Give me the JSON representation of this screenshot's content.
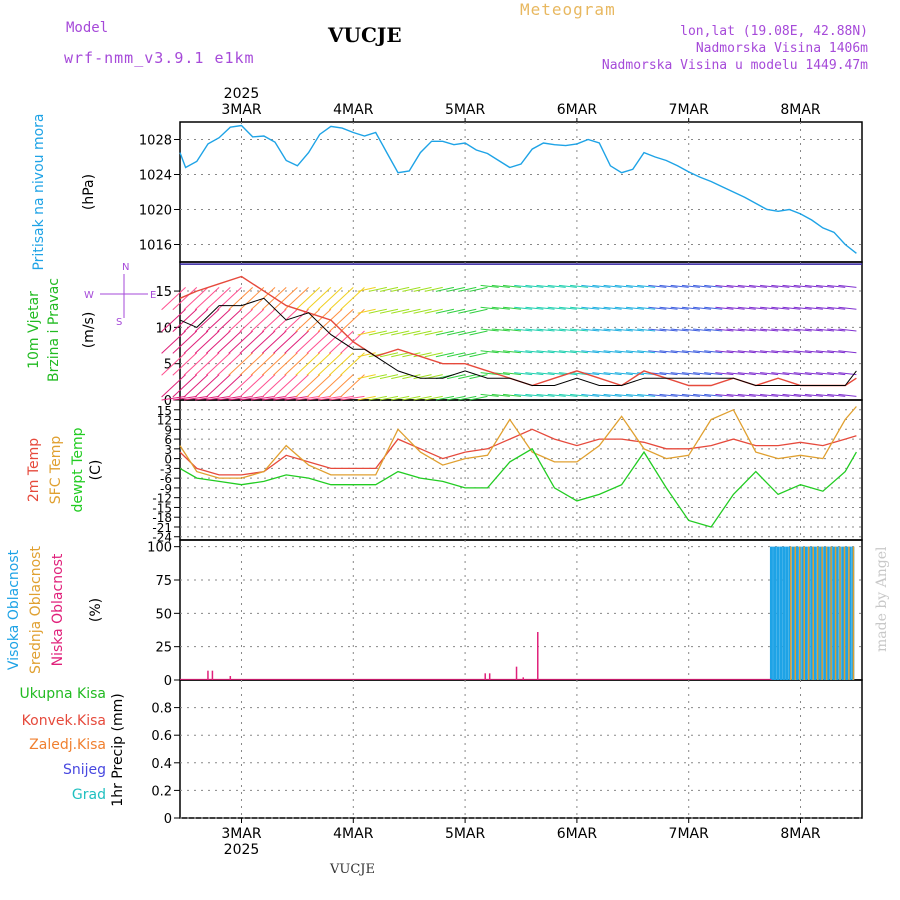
{
  "header": {
    "station": "VUCJE",
    "model_label": "Model",
    "model_name": "wrf-nmm_v3.9.1 e1km",
    "meteogram_label": "Meteogram",
    "coords": "lon,lat (19.08E, 42.88N)",
    "elevation": "Nadmorska Visina 1406m",
    "model_elevation": "Nadmorska Visina u modelu 1449.47m"
  },
  "footer": {
    "station": "VUCJE",
    "credit": "made by Angel"
  },
  "colors": {
    "pressure": "#1ea3e6",
    "temp2m": "#e64a3c",
    "sfc": "#e0a030",
    "dewpt": "#22cc22",
    "high_cloud": "#1ea3e6",
    "mid_cloud": "#e0a030",
    "low_cloud": "#e0207a",
    "gust": "#e64a3c",
    "wind_black": "#000000"
  },
  "chart_data": [
    {
      "type": "line",
      "title": "Pritisak na nivou mora",
      "ylabel": "(hPa)",
      "ylim": [
        1014,
        1030
      ],
      "yticks": [
        1016,
        1020,
        1024,
        1028
      ],
      "grid": true,
      "x_top_labels": [
        "3MAR",
        "4MAR",
        "5MAR",
        "6MAR",
        "7MAR",
        "8MAR"
      ],
      "x_top_year": "2025",
      "series": [
        {
          "x": [
            2.45,
            2.5,
            2.6,
            2.7,
            2.8,
            2.9,
            3.0,
            3.1,
            3.2,
            3.3,
            3.4,
            3.5,
            3.6,
            3.7,
            3.8,
            3.9,
            4.0,
            4.1,
            4.2,
            4.3,
            4.4,
            4.5,
            4.6,
            4.7,
            4.8,
            4.9,
            5.0,
            5.1,
            5.2,
            5.3,
            5.4,
            5.5,
            5.6,
            5.7,
            5.8,
            5.9,
            6.0,
            6.1,
            6.2,
            6.3,
            6.4,
            6.5,
            6.6,
            6.7,
            6.8,
            6.9,
            7.0,
            7.1,
            7.2,
            7.3,
            7.4,
            7.5,
            7.6,
            7.7,
            7.8,
            7.9,
            8.0,
            8.1,
            8.2,
            8.3,
            8.4,
            8.5
          ],
          "values": [
            1026.5,
            1024.8,
            1025.5,
            1027.5,
            1028.2,
            1029.4,
            1029.6,
            1028.3,
            1028.4,
            1027.7,
            1025.6,
            1025.0,
            1026.5,
            1028.6,
            1029.5,
            1029.3,
            1028.8,
            1028.4,
            1028.8,
            1026.5,
            1024.2,
            1024.4,
            1026.5,
            1027.8,
            1027.8,
            1027.4,
            1027.6,
            1026.8,
            1026.4,
            1025.6,
            1024.8,
            1025.2,
            1026.9,
            1027.6,
            1027.4,
            1027.3,
            1027.5,
            1028.0,
            1027.6,
            1025.0,
            1024.2,
            1024.6,
            1026.5,
            1026.0,
            1025.6,
            1025.0,
            1024.3,
            1023.7,
            1023.2,
            1022.6,
            1022.0,
            1021.4,
            1020.7,
            1020.0,
            1019.8,
            1020.0,
            1019.5,
            1018.8,
            1017.9,
            1017.4,
            1016.0,
            1015.0
          ]
        }
      ]
    },
    {
      "type": "line",
      "title": "10m Vjetar Brzina i Pravac",
      "ylabel": "(m/s)",
      "ylim": [
        0,
        19
      ],
      "yticks": [
        0,
        5,
        10,
        15
      ],
      "grid": true,
      "compass": "N, E, S, W",
      "series": [
        {
          "name": "Brzina",
          "x": [
            2.45,
            2.6,
            2.8,
            3.0,
            3.2,
            3.4,
            3.6,
            3.8,
            4.0,
            4.1,
            4.2,
            4.4,
            4.6,
            4.8,
            5.0,
            5.2,
            5.4,
            5.6,
            5.8,
            6.0,
            6.2,
            6.4,
            6.6,
            6.8,
            7.0,
            7.2,
            7.4,
            7.6,
            7.8,
            8.0,
            8.2,
            8.4,
            8.5
          ],
          "values": [
            11,
            10,
            13,
            13,
            14,
            11,
            12,
            9,
            7,
            7,
            6,
            4,
            3,
            3,
            4,
            3,
            3,
            2,
            2,
            3,
            2,
            2,
            3,
            3,
            3,
            3,
            3,
            2,
            2,
            2,
            2,
            2,
            4
          ]
        },
        {
          "name": "Udari",
          "x": [
            2.45,
            2.6,
            2.8,
            3.0,
            3.2,
            3.4,
            3.6,
            3.8,
            4.0,
            4.2,
            4.4,
            4.6,
            4.8,
            5.0,
            5.2,
            5.4,
            5.6,
            5.8,
            6.0,
            6.2,
            6.4,
            6.6,
            6.8,
            7.0,
            7.2,
            7.4,
            7.6,
            7.8,
            8.0,
            8.2,
            8.4,
            8.5
          ],
          "values": [
            14,
            15,
            16,
            17,
            15,
            13,
            12,
            11,
            8,
            6,
            7,
            6,
            5,
            5,
            4,
            3,
            2,
            3,
            4,
            3,
            2,
            4,
            3,
            2,
            2,
            3,
            2,
            3,
            2,
            2,
            2,
            3
          ]
        }
      ]
    },
    {
      "type": "line",
      "title": "2m Temp / SFC Temp / dewpt Temp",
      "ylabel": "(C)",
      "ylim": [
        -25,
        18
      ],
      "yticks": [
        -24,
        -21,
        -18,
        -15,
        -12,
        -9,
        -6,
        -3,
        0,
        3,
        6,
        9,
        12,
        15
      ],
      "grid": true,
      "series": [
        {
          "name": "2m Temp",
          "x": [
            2.45,
            2.6,
            2.8,
            3.0,
            3.2,
            3.4,
            3.6,
            3.8,
            4.0,
            4.2,
            4.4,
            4.6,
            4.8,
            5.0,
            5.2,
            5.4,
            5.6,
            5.8,
            6.0,
            6.2,
            6.4,
            6.6,
            6.8,
            7.0,
            7.2,
            7.4,
            7.6,
            7.8,
            8.0,
            8.2,
            8.4,
            8.5
          ],
          "values": [
            2,
            -3,
            -5,
            -5,
            -4,
            1,
            -1,
            -3,
            -3,
            -3,
            6,
            3,
            0,
            2,
            3,
            6,
            9,
            6,
            4,
            6,
            6,
            5,
            3,
            3,
            4,
            6,
            4,
            4,
            5,
            4,
            6,
            7
          ]
        },
        {
          "name": "SFC Temp",
          "x": [
            2.45,
            2.6,
            2.8,
            3.0,
            3.2,
            3.4,
            3.6,
            3.8,
            4.0,
            4.2,
            4.4,
            4.6,
            4.8,
            5.0,
            5.2,
            5.4,
            5.6,
            5.8,
            6.0,
            6.2,
            6.4,
            6.6,
            6.8,
            7.0,
            7.2,
            7.4,
            7.6,
            7.8,
            8.0,
            8.2,
            8.4,
            8.5
          ],
          "values": [
            4,
            -4,
            -6,
            -6,
            -4,
            4,
            -2,
            -5,
            -5,
            -5,
            9,
            2,
            -2,
            0,
            1,
            12,
            2,
            -1,
            -1,
            4,
            13,
            3,
            0,
            1,
            12,
            15,
            2,
            0,
            1,
            0,
            12,
            16
          ]
        },
        {
          "name": "dewpt Temp",
          "x": [
            2.45,
            2.6,
            2.8,
            3.0,
            3.2,
            3.4,
            3.6,
            3.8,
            4.0,
            4.2,
            4.4,
            4.6,
            4.8,
            5.0,
            5.2,
            5.4,
            5.6,
            5.8,
            6.0,
            6.2,
            6.4,
            6.6,
            6.8,
            7.0,
            7.2,
            7.4,
            7.6,
            7.8,
            8.0,
            8.2,
            8.4,
            8.5
          ],
          "values": [
            -3,
            -6,
            -7,
            -8,
            -7,
            -5,
            -6,
            -8,
            -8,
            -8,
            -4,
            -6,
            -7,
            -9,
            -9,
            -1,
            3,
            -9,
            -13,
            -11,
            -8,
            2,
            -9,
            -19,
            -21,
            -11,
            -4,
            -11,
            -8,
            -10,
            -4,
            2
          ]
        }
      ]
    },
    {
      "type": "bar",
      "title": "Visoka Oblacnost / Srednja Oblacnost / Niska Oblacnost",
      "ylabel": "(%)",
      "ylim": [
        0,
        105
      ],
      "yticks": [
        0,
        25,
        50,
        75,
        100
      ],
      "grid": true,
      "series": [
        {
          "name": "Niska Oblacnost",
          "x": [
            2.7,
            2.74,
            2.9,
            5.18,
            5.22,
            5.46,
            5.52,
            5.65
          ],
          "values": [
            7,
            7,
            3,
            5,
            5,
            10,
            2,
            36
          ]
        },
        {
          "name": "Visoka Oblacnost",
          "x_from": 7.74,
          "x_to": 8.47,
          "x_step": 0.028,
          "value": 100
        },
        {
          "name": "Srednja Oblacnost",
          "x_from": 7.9,
          "x_to": 8.47,
          "x_step": 0.04,
          "value": 100
        }
      ]
    },
    {
      "type": "bar",
      "title": "Ukupna Kisa / Konvek.Kisa / Zaledj.Kisa / Snijeg / Grad",
      "ylabel": "1hr Precip (mm)",
      "ylim": [
        0,
        1
      ],
      "yticks": [
        0,
        0.2,
        0.4,
        0.6,
        0.8
      ],
      "grid": true,
      "legend": [
        "Ukupna Kisa",
        "Konvek.Kisa",
        "Zaledj.Kisa",
        "Snijeg",
        "Grad"
      ],
      "x_bottom_labels": [
        "3MAR",
        "4MAR",
        "5MAR",
        "6MAR",
        "7MAR",
        "8MAR"
      ],
      "x_bottom_year": "2025",
      "series": []
    }
  ]
}
